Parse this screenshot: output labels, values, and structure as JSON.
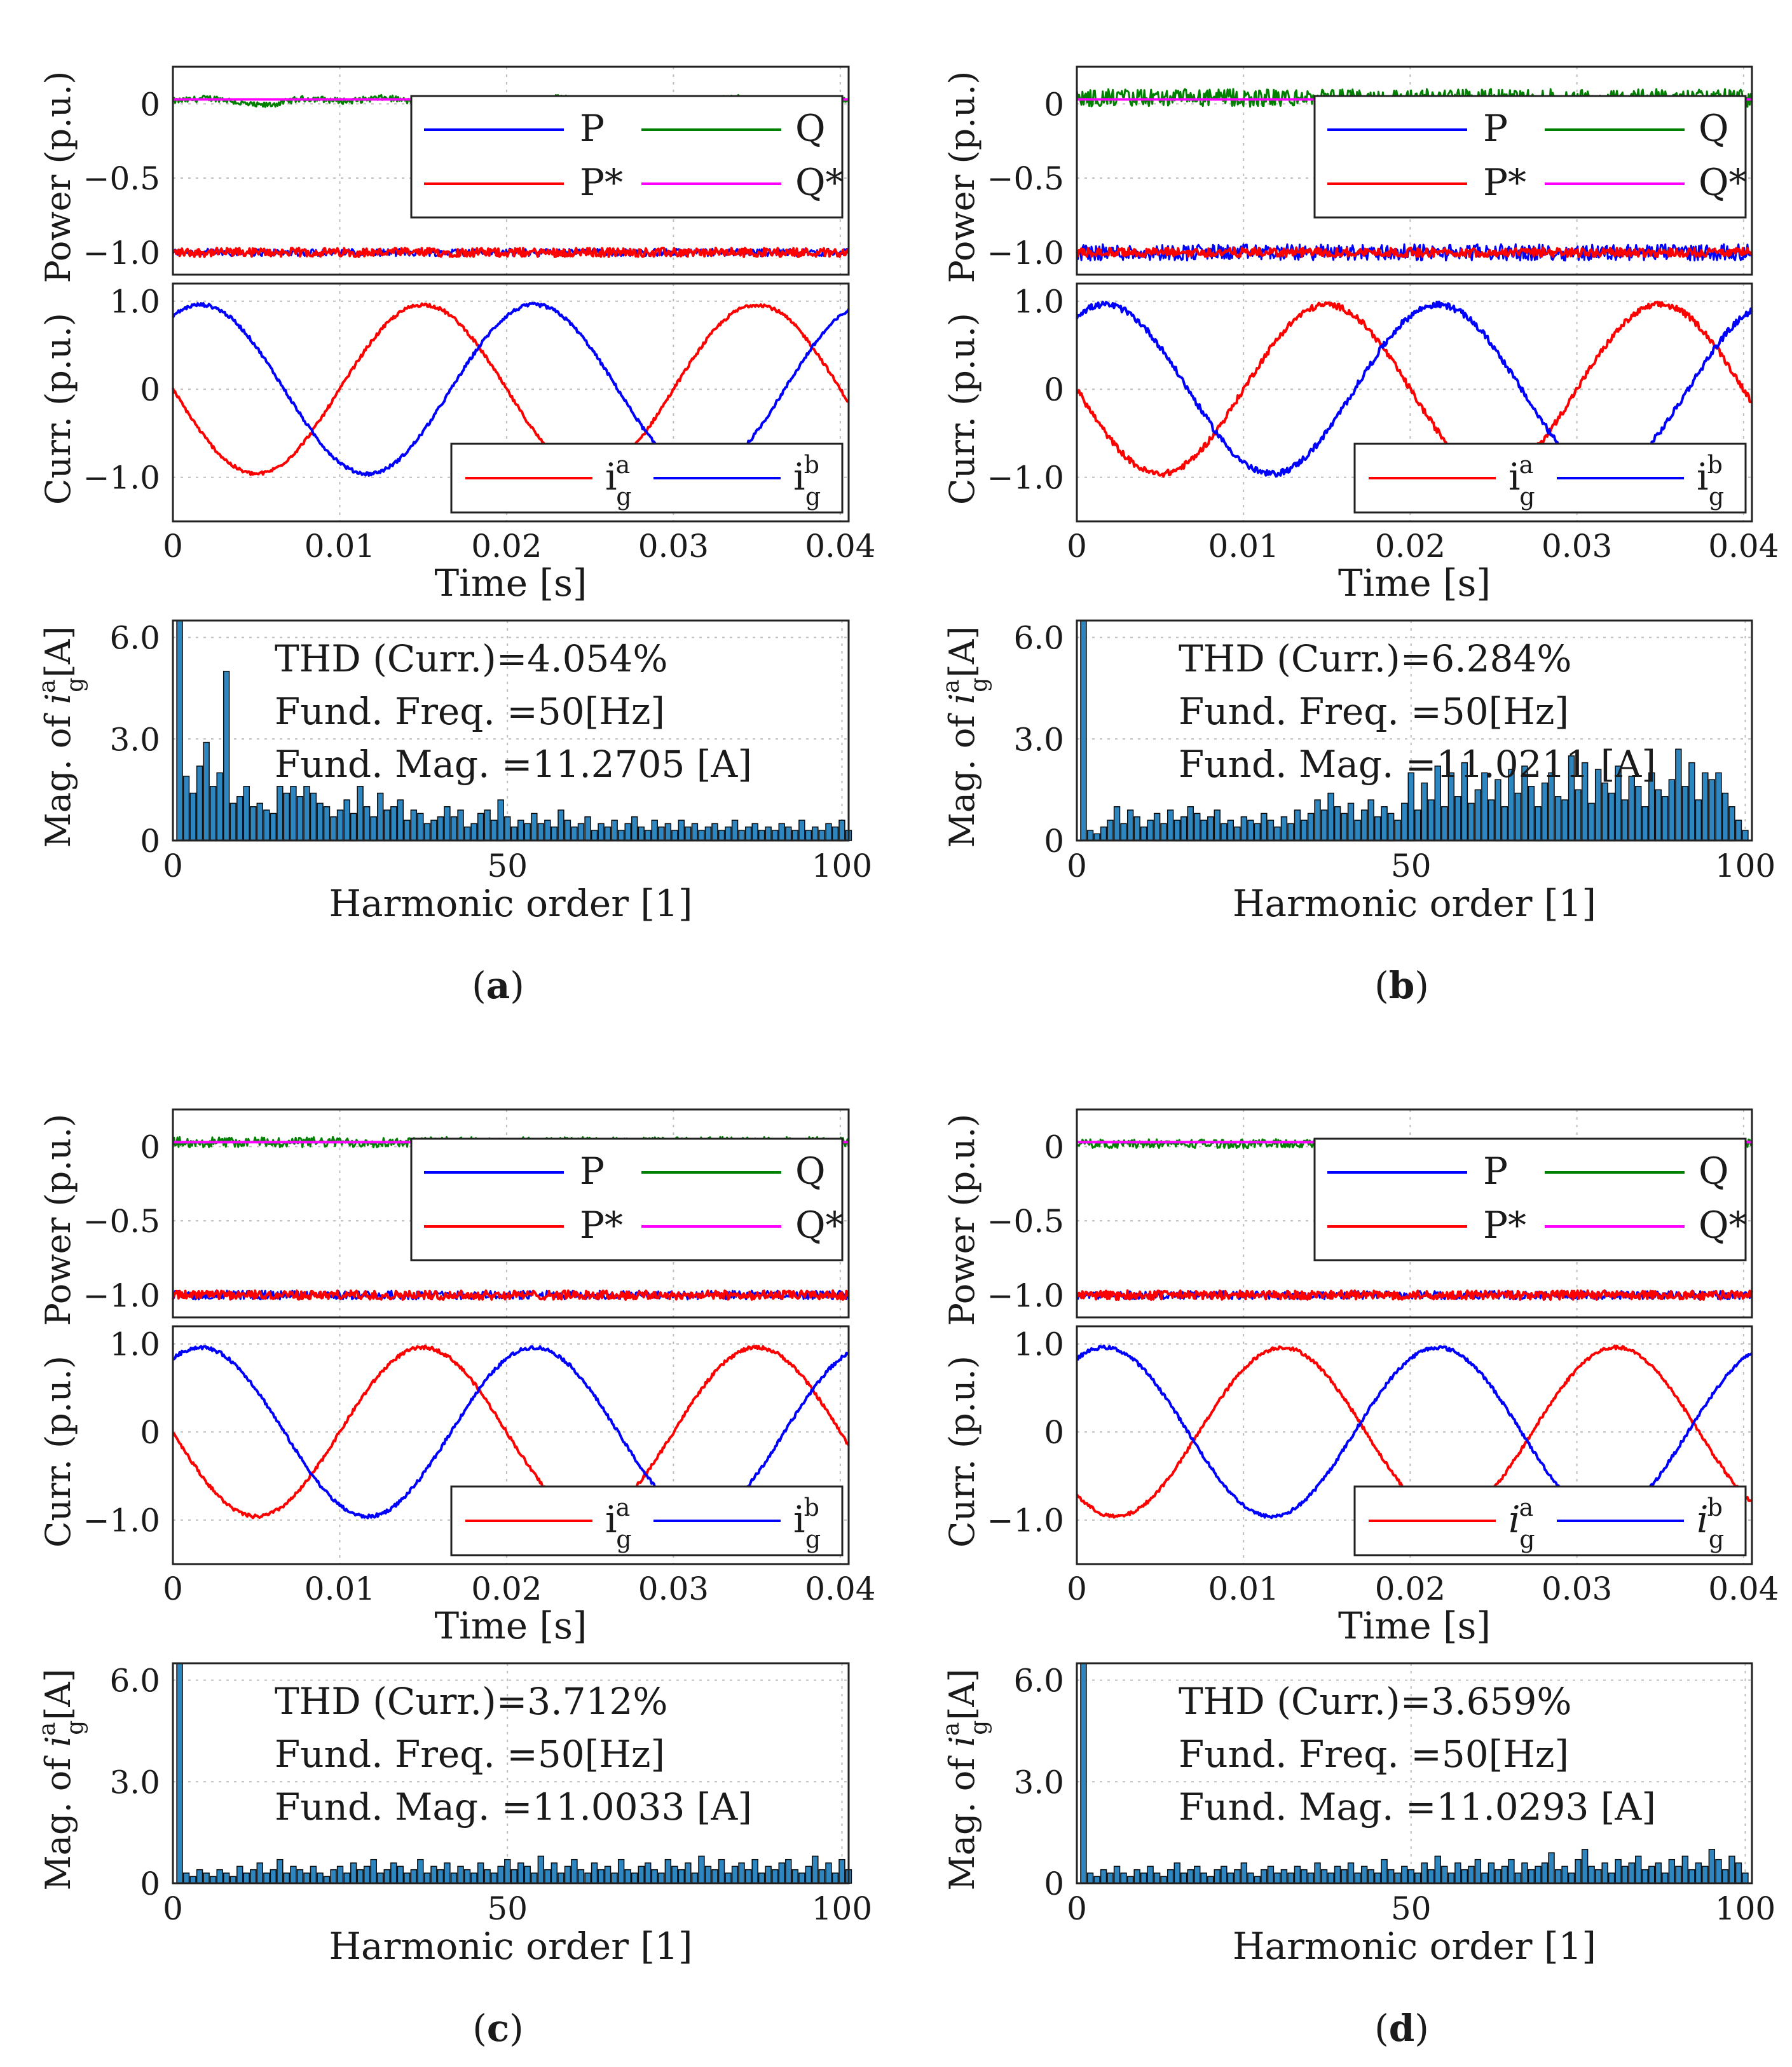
{
  "colors": {
    "P": "#0000ff",
    "P_ref": "#ff0000",
    "Q": "#008000",
    "Q_ref": "#ff00ff",
    "ia": "#ff0000",
    "ib": "#0000ff",
    "bar_fill": "#2e86c1",
    "bar_edge": "#0a0a0a",
    "grid": "#bdbdbd"
  },
  "common": {
    "power_ylabel": "Power (p.u.)",
    "power_ticks": [
      "0",
      "−0.5",
      "−1.0"
    ],
    "power_ylim": [
      -1.15,
      0.25
    ],
    "curr_ylabel": "Curr. (p.u.)",
    "curr_ticks": [
      "1.0",
      "0",
      "−1.0"
    ],
    "curr_ylim": [
      -1.5,
      1.2
    ],
    "time_ticks": [
      "0",
      "0.01",
      "0.02",
      "0.03",
      "0.04"
    ],
    "time_xlabel": "Time [s]",
    "time_xlim": [
      0,
      0.0405
    ],
    "harm_ylabel_prefix": "Mag.  of ",
    "harm_ylabel_var": "i",
    "harm_ylabel_sub": "g",
    "harm_ylabel_sup": "a",
    "harm_ylabel_suffix": "[A]",
    "harm_ticks_y": [
      "6.0",
      "3.0",
      "0"
    ],
    "harm_ylim": [
      0,
      6.5
    ],
    "harm_ticks_x": [
      "0",
      "50",
      "100"
    ],
    "harm_xlabel": "Harmonic order [1]",
    "harm_xlim": [
      0,
      101
    ],
    "legend_power": [
      "P",
      "Q",
      "P*",
      "Q*"
    ],
    "legend_curr_var": "i",
    "legend_curr_sub": "g",
    "legend_curr_sup": [
      "a",
      "b"
    ]
  },
  "chart_data": [
    {
      "type": "line",
      "panel": "(a)",
      "power": {
        "P_mean": -1.0,
        "P_noise": 0.025,
        "Q_mean": 0.02,
        "Q_noise": 0.035,
        "Q_style": "smooth",
        "P_ref": -1.0,
        "Q_ref": 0.03
      },
      "current": {
        "amplitude": 0.96,
        "frequency_hz": 50,
        "ia_phase_deg": 180,
        "ib_phase_deg": 60,
        "noise": 0.02,
        "clip_low": -0.78,
        "clip_low_start": 0.02
      },
      "harmonics": {
        "fundamental": 11.2705,
        "bars": [
          0,
          6.5,
          1.9,
          1.4,
          2.2,
          2.9,
          1.6,
          2.0,
          5.0,
          1.1,
          1.3,
          1.6,
          1.0,
          1.1,
          0.9,
          0.8,
          1.6,
          1.4,
          1.6,
          1.3,
          1.6,
          1.4,
          1.1,
          1.0,
          0.7,
          0.9,
          1.2,
          0.8,
          1.6,
          1.0,
          0.7,
          1.4,
          0.9,
          1.0,
          1.2,
          0.6,
          0.9,
          0.8,
          0.5,
          0.6,
          0.7,
          1.0,
          0.7,
          0.9,
          0.4,
          0.5,
          0.8,
          0.9,
          0.6,
          1.2,
          0.7,
          0.4,
          0.6,
          0.5,
          0.8,
          0.5,
          0.6,
          0.4,
          0.9,
          0.6,
          0.4,
          0.5,
          0.7,
          0.3,
          0.5,
          0.4,
          0.6,
          0.3,
          0.5,
          0.7,
          0.4,
          0.3,
          0.6,
          0.4,
          0.5,
          0.3,
          0.6,
          0.4,
          0.5,
          0.3,
          0.4,
          0.5,
          0.3,
          0.4,
          0.6,
          0.3,
          0.4,
          0.5,
          0.3,
          0.4,
          0.3,
          0.5,
          0.4,
          0.3,
          0.6,
          0.3,
          0.4,
          0.3,
          0.5,
          0.4,
          0.6,
          0.3
        ]
      },
      "annotation": {
        "thd": "THD (Curr.)=4.054%",
        "freq": "Fund.  Freq.  =50[Hz]",
        "mag": "Fund.  Mag.  =11.2705 [A]"
      }
    },
    {
      "type": "line",
      "panel": "(b)",
      "power": {
        "P_mean": -1.0,
        "P_noise": 0.055,
        "Q_mean": 0.04,
        "Q_noise": 0.06,
        "Q_style": "noisy",
        "P_ref": -1.0,
        "Q_ref": 0.03
      },
      "current": {
        "amplitude": 0.96,
        "frequency_hz": 50,
        "ia_phase_deg": 180,
        "ib_phase_deg": 60,
        "noise": 0.035,
        "clip_low": -0.78,
        "clip_low_start": 0.025
      },
      "harmonics": {
        "fundamental": 11.0211,
        "bars": [
          0,
          6.5,
          0.3,
          0.2,
          0.4,
          0.6,
          1.0,
          0.5,
          0.9,
          0.7,
          0.4,
          0.6,
          0.8,
          0.5,
          0.9,
          0.6,
          0.7,
          1.0,
          0.8,
          0.6,
          0.7,
          0.9,
          0.5,
          0.6,
          0.4,
          0.7,
          0.6,
          0.5,
          0.8,
          0.6,
          0.4,
          0.7,
          0.5,
          0.9,
          0.6,
          0.8,
          1.2,
          0.9,
          1.4,
          1.0,
          0.8,
          1.1,
          0.6,
          0.9,
          1.2,
          0.7,
          1.0,
          0.8,
          0.6,
          1.1,
          2.0,
          0.9,
          1.7,
          1.2,
          2.2,
          1.0,
          2.0,
          1.3,
          2.3,
          1.1,
          1.5,
          2.0,
          1.2,
          1.8,
          1.0,
          2.1,
          1.4,
          2.2,
          1.6,
          1.0,
          1.7,
          2.0,
          1.3,
          1.2,
          2.5,
          1.5,
          2.3,
          1.1,
          2.1,
          1.7,
          1.4,
          2.2,
          1.2,
          1.9,
          1.6,
          1.0,
          2.0,
          1.5,
          1.3,
          1.8,
          2.7,
          1.6,
          2.3,
          1.2,
          2.0,
          1.8,
          2.0,
          1.4,
          1.0,
          0.6,
          0.3
        ]
      },
      "annotation": {
        "thd": "THD (Curr.)=6.284%",
        "freq": "Fund.  Freq.  =50[Hz]",
        "mag": "Fund.  Mag.  =11.0211 [A]"
      }
    },
    {
      "type": "line",
      "panel": "(c)",
      "power": {
        "P_mean": -1.0,
        "P_noise": 0.03,
        "Q_mean": 0.03,
        "Q_noise": 0.035,
        "Q_style": "noisy",
        "P_ref": -1.0,
        "Q_ref": 0.03
      },
      "current": {
        "amplitude": 0.96,
        "frequency_hz": 50,
        "ia_phase_deg": 180,
        "ib_phase_deg": 60,
        "noise": 0.02,
        "clip_low": -0.78,
        "clip_low_start": 0.025
      },
      "harmonics": {
        "fundamental": 11.0033,
        "bars": [
          0,
          6.5,
          0.3,
          0.2,
          0.4,
          0.3,
          0.2,
          0.4,
          0.3,
          0.2,
          0.5,
          0.3,
          0.4,
          0.6,
          0.3,
          0.4,
          0.7,
          0.3,
          0.5,
          0.4,
          0.3,
          0.5,
          0.3,
          0.2,
          0.4,
          0.5,
          0.3,
          0.6,
          0.4,
          0.5,
          0.7,
          0.3,
          0.4,
          0.6,
          0.5,
          0.3,
          0.4,
          0.7,
          0.3,
          0.5,
          0.4,
          0.6,
          0.3,
          0.5,
          0.4,
          0.3,
          0.6,
          0.4,
          0.3,
          0.5,
          0.7,
          0.4,
          0.6,
          0.5,
          0.3,
          0.8,
          0.4,
          0.6,
          0.3,
          0.5,
          0.7,
          0.4,
          0.3,
          0.6,
          0.4,
          0.5,
          0.3,
          0.7,
          0.4,
          0.3,
          0.5,
          0.6,
          0.4,
          0.3,
          0.7,
          0.5,
          0.4,
          0.6,
          0.3,
          0.8,
          0.5,
          0.4,
          0.7,
          0.3,
          0.5,
          0.6,
          0.4,
          0.7,
          0.3,
          0.5,
          0.4,
          0.6,
          0.7,
          0.4,
          0.3,
          0.5,
          0.8,
          0.4,
          0.6,
          0.3,
          0.7,
          0.4
        ]
      },
      "annotation": {
        "thd": "THD (Curr.)=3.712%",
        "freq": "Fund.  Freq.  =50[Hz]",
        "mag": "Fund.  Mag.  =11.0033 [A]"
      }
    },
    {
      "type": "line",
      "panel": "(d)",
      "power": {
        "P_mean": -1.0,
        "P_noise": 0.028,
        "Q_mean": 0.02,
        "Q_noise": 0.03,
        "Q_style": "noisy",
        "P_ref": -1.0,
        "Q_ref": 0.03
      },
      "current": {
        "amplitude": 0.96,
        "frequency_hz": 50,
        "ia_phase_deg": 228,
        "ib_phase_deg": 60,
        "noise": 0.02,
        "clip_low": -0.78,
        "clip_low_start": 0.026
      },
      "harmonics": {
        "fundamental": 11.0293,
        "bars": [
          0,
          6.5,
          0.3,
          0.2,
          0.4,
          0.3,
          0.5,
          0.3,
          0.2,
          0.4,
          0.3,
          0.5,
          0.3,
          0.2,
          0.4,
          0.6,
          0.3,
          0.4,
          0.5,
          0.3,
          0.2,
          0.4,
          0.5,
          0.3,
          0.4,
          0.6,
          0.3,
          0.2,
          0.4,
          0.5,
          0.3,
          0.4,
          0.3,
          0.5,
          0.4,
          0.3,
          0.6,
          0.4,
          0.3,
          0.5,
          0.4,
          0.6,
          0.3,
          0.5,
          0.4,
          0.3,
          0.7,
          0.4,
          0.3,
          0.5,
          0.4,
          0.3,
          0.6,
          0.4,
          0.8,
          0.5,
          0.3,
          0.6,
          0.4,
          0.5,
          0.7,
          0.3,
          0.6,
          0.4,
          0.5,
          0.7,
          0.3,
          0.6,
          0.4,
          0.5,
          0.6,
          0.9,
          0.4,
          0.5,
          0.3,
          0.7,
          1.0,
          0.5,
          0.4,
          0.6,
          0.3,
          0.7,
          0.5,
          0.6,
          0.8,
          0.4,
          0.5,
          0.6,
          0.3,
          0.7,
          0.5,
          0.8,
          0.4,
          0.6,
          0.5,
          1.0,
          0.7,
          0.4,
          0.8,
          0.6,
          0.3
        ]
      },
      "annotation": {
        "thd": "THD (Curr.)=3.659%",
        "freq": "Fund.  Freq.  =50[Hz]",
        "mag": "Fund.  Mag.  =11.0293 [A]"
      }
    }
  ]
}
